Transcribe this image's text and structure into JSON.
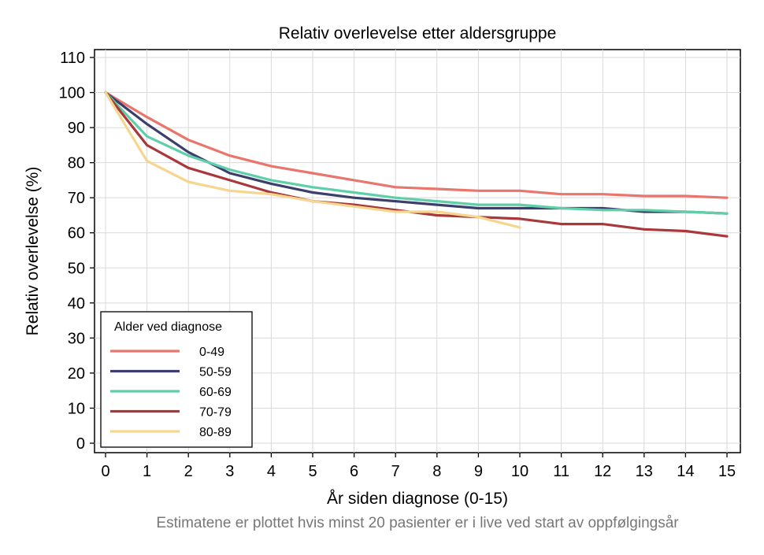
{
  "chart_data": {
    "type": "line",
    "title": "Relativ overlevelse etter aldersgruppe",
    "xlabel": "År siden diagnose (0-15)",
    "ylabel": "Relativ overlevelse (%)",
    "footnote": "Estimatene er plottet hvis minst 20 pasienter er i live ved start av oppfølgingsår",
    "xlim": [
      0,
      15
    ],
    "ylim": [
      0,
      110
    ],
    "xticks": [
      0,
      1,
      2,
      3,
      4,
      5,
      6,
      7,
      8,
      9,
      10,
      11,
      12,
      13,
      14,
      15
    ],
    "yticks": [
      0,
      10,
      20,
      30,
      40,
      50,
      60,
      70,
      80,
      90,
      100,
      110
    ],
    "grid": true,
    "legend": {
      "title": "Alder ved diagnose",
      "position": "bottom-left"
    },
    "series": [
      {
        "name": "0-49",
        "color": "#e8766d",
        "x": [
          0,
          1,
          2,
          3,
          4,
          5,
          6,
          7,
          8,
          9,
          10,
          11,
          12,
          13,
          14,
          15
        ],
        "y": [
          100,
          93,
          86.5,
          82,
          79,
          77,
          75,
          73,
          72.5,
          72,
          72,
          71,
          71,
          70.5,
          70.5,
          70
        ]
      },
      {
        "name": "50-59",
        "color": "#3c3f6b",
        "x": [
          0,
          1,
          2,
          3,
          4,
          5,
          6,
          7,
          8,
          9,
          10,
          11,
          12,
          13,
          14,
          15
        ],
        "y": [
          100,
          91,
          83,
          77,
          74,
          71.5,
          70,
          69,
          68,
          67,
          67,
          67,
          67,
          66,
          66,
          65.5
        ]
      },
      {
        "name": "60-69",
        "color": "#5fcfa9",
        "x": [
          0,
          1,
          2,
          3,
          4,
          5,
          6,
          7,
          8,
          9,
          10,
          11,
          12,
          13,
          14,
          15
        ],
        "y": [
          100,
          87.5,
          82,
          78,
          75,
          73,
          71.5,
          70,
          69,
          68,
          68,
          67,
          66.5,
          66.5,
          66,
          65.5
        ]
      },
      {
        "name": "70-79",
        "color": "#a8383a",
        "x": [
          0,
          1,
          2,
          3,
          4,
          5,
          6,
          7,
          8,
          9,
          10,
          11,
          12,
          13,
          14,
          15
        ],
        "y": [
          100,
          85,
          78.5,
          75,
          71.5,
          69,
          68,
          66.5,
          65,
          64.5,
          64,
          62.5,
          62.5,
          61,
          60.5,
          59
        ]
      },
      {
        "name": "80-89",
        "color": "#f6d58e",
        "x": [
          0,
          1,
          2,
          3,
          4,
          5,
          6,
          7,
          8,
          9,
          10
        ],
        "y": [
          100,
          80.5,
          74.5,
          72,
          71,
          69,
          67.5,
          66,
          66,
          64.5,
          61.5
        ]
      }
    ]
  }
}
